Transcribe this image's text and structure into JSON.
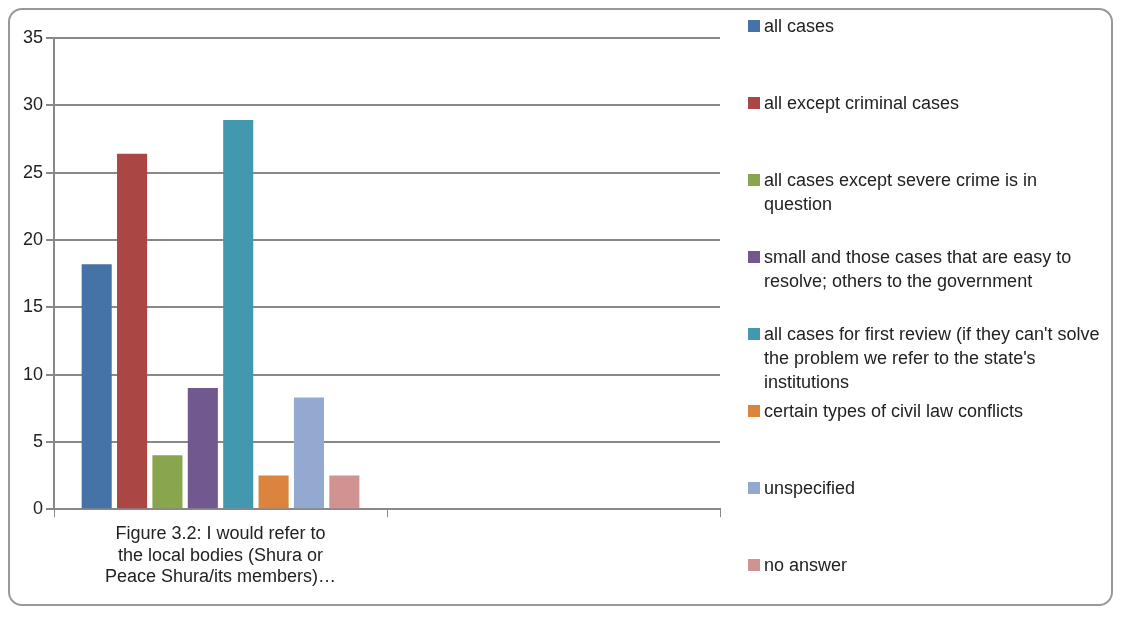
{
  "chart_data": {
    "type": "bar",
    "categories": [
      "Figure 3.2: I would refer to the local bodies (Shura or Peace Shura/its members)…",
      null
    ],
    "series": [
      {
        "name": "all cases",
        "color": "#4572a7",
        "values": [
          18.2,
          null
        ]
      },
      {
        "name": "all except criminal cases",
        "color": "#aa4643",
        "values": [
          26.4,
          null
        ]
      },
      {
        "name": "all cases except severe crime is in question",
        "color": "#89a54e",
        "values": [
          4.0,
          null
        ]
      },
      {
        "name": "small and those cases that are easy to resolve; others to the government",
        "color": "#71588f",
        "values": [
          9.0,
          null
        ]
      },
      {
        "name": "all cases for first review (if they can't solve the problem we refer to the state's institutions",
        "color": "#4198af",
        "values": [
          28.9,
          null
        ]
      },
      {
        "name": "certain types of civil law conflicts",
        "color": "#db843d",
        "values": [
          2.5,
          null
        ]
      },
      {
        "name": "unspecified",
        "color": "#93a9cf",
        "values": [
          8.3,
          null
        ]
      },
      {
        "name": "no answer",
        "color": "#d19392",
        "values": [
          2.5,
          null
        ]
      }
    ],
    "ylim": [
      0,
      35
    ],
    "yticks": [
      0,
      5,
      10,
      15,
      20,
      25,
      30,
      35
    ],
    "grid": "y",
    "legend": "right"
  }
}
